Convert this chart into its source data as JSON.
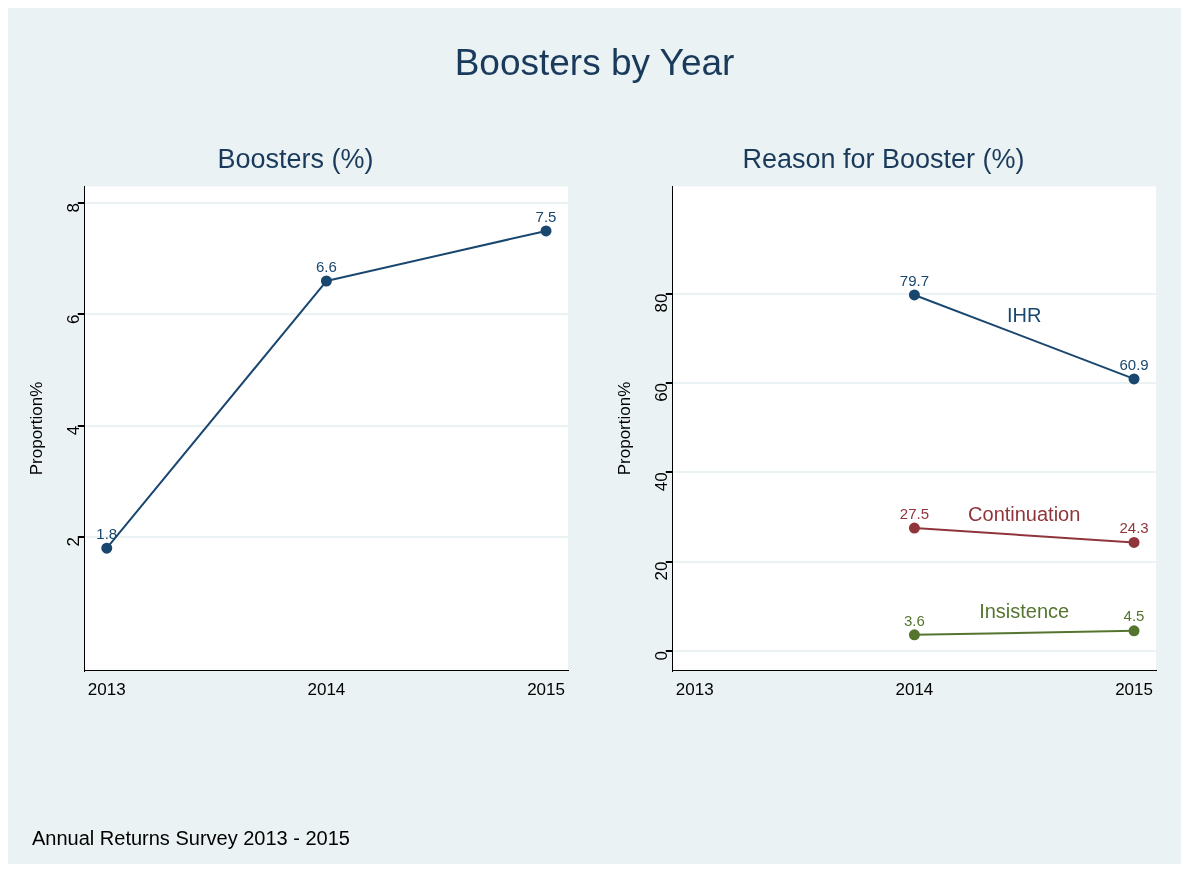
{
  "chart_data": [
    {
      "type": "other",
      "title": "Boosters by Year",
      "annotations": [
        "Annual Returns Survey 2013 - 2015"
      ]
    },
    {
      "type": "line",
      "title": "Boosters (%)",
      "ylabel": "Proportion%",
      "x": [
        2013,
        2014,
        2015
      ],
      "xlim": [
        2012.9,
        2015.1
      ],
      "xticks": [
        2013,
        2014,
        2015
      ],
      "ylim": [
        -0.4,
        8.3
      ],
      "yticks": [
        2,
        4,
        6,
        8
      ],
      "grid": "y",
      "marker": "circle",
      "line_style": "solid",
      "data_labels": true,
      "series": [
        {
          "color": "#1a476f",
          "values": [
            1.8,
            6.6,
            7.5
          ]
        }
      ]
    },
    {
      "type": "line",
      "title": "Reason for Booster (%)",
      "ylabel": "Proportion%",
      "categories": [
        "2013",
        "2014",
        "2015"
      ],
      "ylim": [
        -4.4,
        104
      ],
      "yticks": [
        0,
        20,
        40,
        60,
        80
      ],
      "grid": "y",
      "marker": "circle",
      "line_style": "solid",
      "data_labels": true,
      "series": [
        {
          "name": "IHR",
          "color": "#1a476f",
          "values": [
            null,
            79.7,
            60.9
          ]
        },
        {
          "name": "Continuation",
          "color": "#90353b",
          "values": [
            null,
            27.5,
            24.3
          ]
        },
        {
          "name": "Insistence",
          "color": "#55752f",
          "values": [
            null,
            3.6,
            4.5
          ]
        }
      ]
    }
  ]
}
